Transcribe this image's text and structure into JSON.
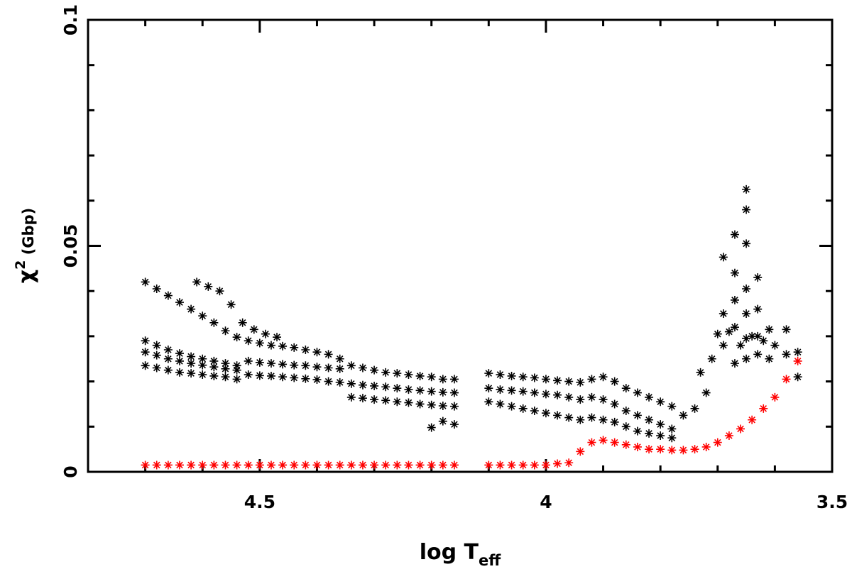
{
  "chart_data": {
    "type": "scatter",
    "title": "",
    "xlabel": {
      "main": "log T",
      "subscript": "eff"
    },
    "ylabel": {
      "symbol": "χ",
      "superscript": "2",
      "rest": " (Gbp)"
    },
    "xlim": [
      4.8,
      3.5
    ],
    "ylim": [
      0,
      0.1
    ],
    "x_reversed": true,
    "xticks": [
      4.5,
      4,
      3.5
    ],
    "xtick_labels": [
      "4.5",
      "4",
      "3.5"
    ],
    "yticks": [
      0,
      0.05,
      0.1
    ],
    "ytick_labels": [
      "0",
      "0.05",
      "0.1"
    ],
    "grid": false,
    "marker": "asterisk",
    "series": [
      {
        "color": "#000000",
        "points": [
          [
            4.7,
            0.042
          ],
          [
            4.68,
            0.0405
          ],
          [
            4.66,
            0.039
          ],
          [
            4.64,
            0.0375
          ],
          [
            4.62,
            0.036
          ],
          [
            4.6,
            0.0345
          ],
          [
            4.58,
            0.033
          ],
          [
            4.56,
            0.0312
          ],
          [
            4.54,
            0.0298
          ],
          [
            4.61,
            0.042
          ],
          [
            4.59,
            0.041
          ],
          [
            4.57,
            0.04
          ],
          [
            4.55,
            0.037
          ],
          [
            4.53,
            0.033
          ],
          [
            4.51,
            0.0315
          ],
          [
            4.49,
            0.0305
          ],
          [
            4.47,
            0.0298
          ],
          [
            4.7,
            0.029
          ],
          [
            4.68,
            0.028
          ],
          [
            4.66,
            0.027
          ],
          [
            4.64,
            0.0262
          ],
          [
            4.62,
            0.0255
          ],
          [
            4.6,
            0.025
          ],
          [
            4.58,
            0.0245
          ],
          [
            4.56,
            0.024
          ],
          [
            4.54,
            0.0235
          ],
          [
            4.7,
            0.0265
          ],
          [
            4.68,
            0.0258
          ],
          [
            4.66,
            0.025
          ],
          [
            4.64,
            0.0245
          ],
          [
            4.62,
            0.024
          ],
          [
            4.6,
            0.0236
          ],
          [
            4.58,
            0.0232
          ],
          [
            4.56,
            0.0228
          ],
          [
            4.54,
            0.0225
          ],
          [
            4.7,
            0.0235
          ],
          [
            4.68,
            0.023
          ],
          [
            4.66,
            0.0225
          ],
          [
            4.64,
            0.022
          ],
          [
            4.62,
            0.0218
          ],
          [
            4.6,
            0.0215
          ],
          [
            4.58,
            0.0212
          ],
          [
            4.56,
            0.021
          ],
          [
            4.54,
            0.0205
          ],
          [
            4.52,
            0.029
          ],
          [
            4.5,
            0.0285
          ],
          [
            4.48,
            0.028
          ],
          [
            4.46,
            0.0278
          ],
          [
            4.44,
            0.0275
          ],
          [
            4.42,
            0.027
          ],
          [
            4.4,
            0.0265
          ],
          [
            4.38,
            0.026
          ],
          [
            4.36,
            0.025
          ],
          [
            4.52,
            0.0245
          ],
          [
            4.5,
            0.0242
          ],
          [
            4.48,
            0.024
          ],
          [
            4.46,
            0.0238
          ],
          [
            4.44,
            0.0236
          ],
          [
            4.42,
            0.0235
          ],
          [
            4.4,
            0.0232
          ],
          [
            4.38,
            0.023
          ],
          [
            4.36,
            0.0228
          ],
          [
            4.52,
            0.0215
          ],
          [
            4.5,
            0.0213
          ],
          [
            4.48,
            0.0212
          ],
          [
            4.46,
            0.021
          ],
          [
            4.44,
            0.0208
          ],
          [
            4.42,
            0.0206
          ],
          [
            4.4,
            0.0204
          ],
          [
            4.38,
            0.02
          ],
          [
            4.36,
            0.0198
          ],
          [
            4.34,
            0.0235
          ],
          [
            4.32,
            0.023
          ],
          [
            4.3,
            0.0225
          ],
          [
            4.28,
            0.022
          ],
          [
            4.26,
            0.0218
          ],
          [
            4.24,
            0.0215
          ],
          [
            4.22,
            0.0212
          ],
          [
            4.2,
            0.021
          ],
          [
            4.18,
            0.0205
          ],
          [
            4.16,
            0.0205
          ],
          [
            4.34,
            0.0195
          ],
          [
            4.32,
            0.0192
          ],
          [
            4.3,
            0.019
          ],
          [
            4.28,
            0.0188
          ],
          [
            4.26,
            0.0185
          ],
          [
            4.24,
            0.0182
          ],
          [
            4.22,
            0.018
          ],
          [
            4.2,
            0.0178
          ],
          [
            4.18,
            0.0176
          ],
          [
            4.16,
            0.0175
          ],
          [
            4.34,
            0.0165
          ],
          [
            4.32,
            0.0163
          ],
          [
            4.3,
            0.016
          ],
          [
            4.28,
            0.0158
          ],
          [
            4.26,
            0.0155
          ],
          [
            4.24,
            0.0153
          ],
          [
            4.22,
            0.015
          ],
          [
            4.2,
            0.0148
          ],
          [
            4.18,
            0.0146
          ],
          [
            4.16,
            0.0145
          ],
          [
            4.2,
            0.0098
          ],
          [
            4.18,
            0.0112
          ],
          [
            4.16,
            0.0105
          ],
          [
            4.1,
            0.0218
          ],
          [
            4.08,
            0.0215
          ],
          [
            4.06,
            0.0212
          ],
          [
            4.04,
            0.021
          ],
          [
            4.02,
            0.0208
          ],
          [
            4.0,
            0.0205
          ],
          [
            3.98,
            0.0202
          ],
          [
            3.96,
            0.02
          ],
          [
            3.94,
            0.0198
          ],
          [
            4.1,
            0.0185
          ],
          [
            4.08,
            0.0182
          ],
          [
            4.06,
            0.018
          ],
          [
            4.04,
            0.0178
          ],
          [
            4.02,
            0.0175
          ],
          [
            4.0,
            0.0172
          ],
          [
            3.98,
            0.017
          ],
          [
            3.96,
            0.0165
          ],
          [
            3.94,
            0.016
          ],
          [
            4.1,
            0.0155
          ],
          [
            4.08,
            0.015
          ],
          [
            4.06,
            0.0145
          ],
          [
            4.04,
            0.014
          ],
          [
            4.02,
            0.0135
          ],
          [
            4.0,
            0.013
          ],
          [
            3.98,
            0.0125
          ],
          [
            3.96,
            0.012
          ],
          [
            3.94,
            0.0115
          ],
          [
            3.92,
            0.0205
          ],
          [
            3.9,
            0.021
          ],
          [
            3.88,
            0.02
          ],
          [
            3.86,
            0.0185
          ],
          [
            3.84,
            0.0175
          ],
          [
            3.82,
            0.0165
          ],
          [
            3.8,
            0.0155
          ],
          [
            3.78,
            0.0145
          ],
          [
            3.92,
            0.0165
          ],
          [
            3.9,
            0.016
          ],
          [
            3.88,
            0.015
          ],
          [
            3.86,
            0.0135
          ],
          [
            3.84,
            0.0125
          ],
          [
            3.82,
            0.0115
          ],
          [
            3.8,
            0.0105
          ],
          [
            3.78,
            0.0095
          ],
          [
            3.92,
            0.012
          ],
          [
            3.9,
            0.0115
          ],
          [
            3.88,
            0.011
          ],
          [
            3.86,
            0.01
          ],
          [
            3.84,
            0.009
          ],
          [
            3.82,
            0.0085
          ],
          [
            3.8,
            0.008
          ],
          [
            3.78,
            0.0075
          ],
          [
            3.76,
            0.0125
          ],
          [
            3.74,
            0.014
          ],
          [
            3.72,
            0.0175
          ],
          [
            3.7,
            0.0305
          ],
          [
            3.68,
            0.031
          ],
          [
            3.66,
            0.028
          ],
          [
            3.64,
            0.03
          ],
          [
            3.62,
            0.029
          ],
          [
            3.6,
            0.028
          ],
          [
            3.56,
            0.0265
          ],
          [
            3.69,
            0.0475
          ],
          [
            3.67,
            0.0525
          ],
          [
            3.67,
            0.044
          ],
          [
            3.67,
            0.038
          ],
          [
            3.65,
            0.0625
          ],
          [
            3.65,
            0.058
          ],
          [
            3.65,
            0.0505
          ],
          [
            3.65,
            0.0405
          ],
          [
            3.65,
            0.035
          ],
          [
            3.63,
            0.043
          ],
          [
            3.63,
            0.036
          ],
          [
            3.63,
            0.03
          ],
          [
            3.69,
            0.035
          ],
          [
            3.69,
            0.028
          ],
          [
            3.67,
            0.032
          ],
          [
            3.61,
            0.0315
          ],
          [
            3.58,
            0.0315
          ],
          [
            3.65,
            0.0295
          ],
          [
            3.65,
            0.025
          ],
          [
            3.63,
            0.026
          ],
          [
            3.67,
            0.024
          ],
          [
            3.71,
            0.025
          ],
          [
            3.73,
            0.022
          ],
          [
            3.61,
            0.025
          ],
          [
            3.58,
            0.026
          ],
          [
            3.56,
            0.021
          ]
        ]
      },
      {
        "color": "#ff0000",
        "points": [
          [
            4.7,
            0.0015
          ],
          [
            4.68,
            0.0015
          ],
          [
            4.66,
            0.0015
          ],
          [
            4.64,
            0.0015
          ],
          [
            4.62,
            0.0015
          ],
          [
            4.6,
            0.0015
          ],
          [
            4.58,
            0.0015
          ],
          [
            4.56,
            0.0015
          ],
          [
            4.54,
            0.0015
          ],
          [
            4.52,
            0.0015
          ],
          [
            4.5,
            0.0015
          ],
          [
            4.48,
            0.0015
          ],
          [
            4.46,
            0.0015
          ],
          [
            4.44,
            0.0015
          ],
          [
            4.42,
            0.0015
          ],
          [
            4.4,
            0.0015
          ],
          [
            4.38,
            0.0015
          ],
          [
            4.36,
            0.0015
          ],
          [
            4.34,
            0.0015
          ],
          [
            4.32,
            0.0015
          ],
          [
            4.3,
            0.0015
          ],
          [
            4.28,
            0.0015
          ],
          [
            4.26,
            0.0015
          ],
          [
            4.24,
            0.0015
          ],
          [
            4.22,
            0.0015
          ],
          [
            4.2,
            0.0015
          ],
          [
            4.18,
            0.0015
          ],
          [
            4.16,
            0.0015
          ],
          [
            4.1,
            0.0015
          ],
          [
            4.08,
            0.0015
          ],
          [
            4.06,
            0.0015
          ],
          [
            4.04,
            0.0015
          ],
          [
            4.02,
            0.0015
          ],
          [
            4.0,
            0.0015
          ],
          [
            3.98,
            0.0018
          ],
          [
            3.96,
            0.002
          ],
          [
            3.94,
            0.0045
          ],
          [
            3.92,
            0.0065
          ],
          [
            3.9,
            0.007
          ],
          [
            3.88,
            0.0065
          ],
          [
            3.86,
            0.006
          ],
          [
            3.84,
            0.0055
          ],
          [
            3.82,
            0.005
          ],
          [
            3.8,
            0.005
          ],
          [
            3.78,
            0.0048
          ],
          [
            3.76,
            0.0048
          ],
          [
            3.74,
            0.005
          ],
          [
            3.72,
            0.0055
          ],
          [
            3.7,
            0.0065
          ],
          [
            3.68,
            0.008
          ],
          [
            3.66,
            0.0095
          ],
          [
            3.64,
            0.0115
          ],
          [
            3.62,
            0.014
          ],
          [
            3.6,
            0.0165
          ],
          [
            3.58,
            0.0205
          ],
          [
            3.56,
            0.0245
          ]
        ]
      }
    ]
  }
}
